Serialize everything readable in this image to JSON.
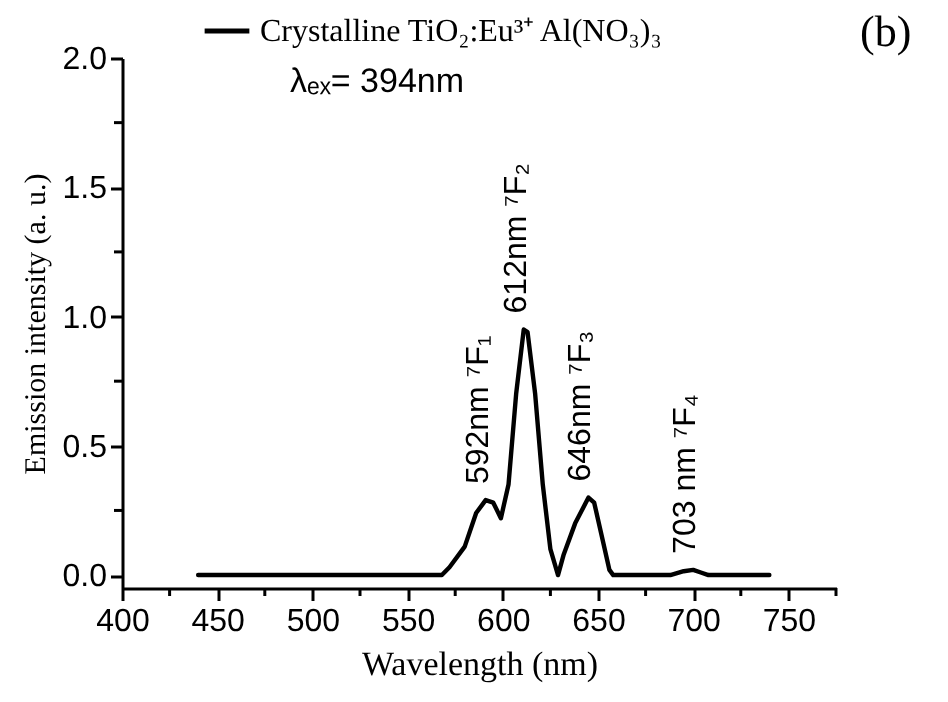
{
  "chart_data": {
    "type": "line",
    "xlabel": "Wavelength (nm)",
    "ylabel": "Emission intensity (a. u.)",
    "x": [
      440,
      568,
      572,
      580,
      586,
      591,
      595,
      599,
      603,
      607,
      611,
      613,
      617,
      621,
      625,
      629,
      632,
      638,
      645,
      648,
      652,
      656,
      658,
      688,
      695,
      700,
      704,
      708,
      740
    ],
    "series": [
      {
        "name": "Crystalline TiO₂:Eu³⁺ Al(NO₃)₃",
        "color": "#000000",
        "values": [
          0,
          0,
          0.03,
          0.11,
          0.24,
          0.29,
          0.28,
          0.22,
          0.35,
          0.7,
          0.95,
          0.94,
          0.7,
          0.35,
          0.1,
          0.0,
          0.08,
          0.2,
          0.3,
          0.28,
          0.15,
          0.02,
          0,
          0,
          0.015,
          0.02,
          0.01,
          0,
          0
        ]
      }
    ],
    "xlim": [
      400,
      775
    ],
    "xticks": [
      400,
      {
        "value": 425,
        "label": null
      },
      450,
      {
        "value": 475,
        "label": null
      },
      500,
      {
        "value": 525,
        "label": null
      },
      550,
      {
        "value": 575,
        "label": null
      },
      600,
      {
        "value": 625,
        "label": null
      },
      650,
      {
        "value": 675,
        "label": null
      },
      700,
      {
        "value": 725,
        "label": null
      },
      750,
      {
        "value": 775,
        "label": null
      }
    ],
    "ylim": [
      -0.05,
      2.0
    ],
    "yticks": [
      {
        "value": 0,
        "label": "0.0"
      },
      {
        "value": 0.25,
        "label": null
      },
      0.5,
      {
        "value": 0.75,
        "label": null
      },
      {
        "value": 1,
        "label": "1.0"
      },
      {
        "value": 1.25,
        "label": null
      },
      1.5,
      {
        "value": 1.75,
        "label": null
      },
      {
        "value": 2,
        "label": "2.0"
      }
    ],
    "legend": "top",
    "line_style": "solid",
    "marker": "none",
    "grid": false,
    "annotations": [
      "λₑₓ= 394nm",
      "(b)",
      {
        "text": "592nm ⁷F₁",
        "x": 591,
        "y": 0.29
      },
      {
        "text": "612nm ⁷F₂",
        "x": 611,
        "y": 0.95
      },
      {
        "text": "646nm ⁷F₃",
        "x": 645,
        "y": 0.3
      },
      {
        "text": "703 nm ⁷F₄",
        "x": 700,
        "y": 0.02
      }
    ]
  }
}
